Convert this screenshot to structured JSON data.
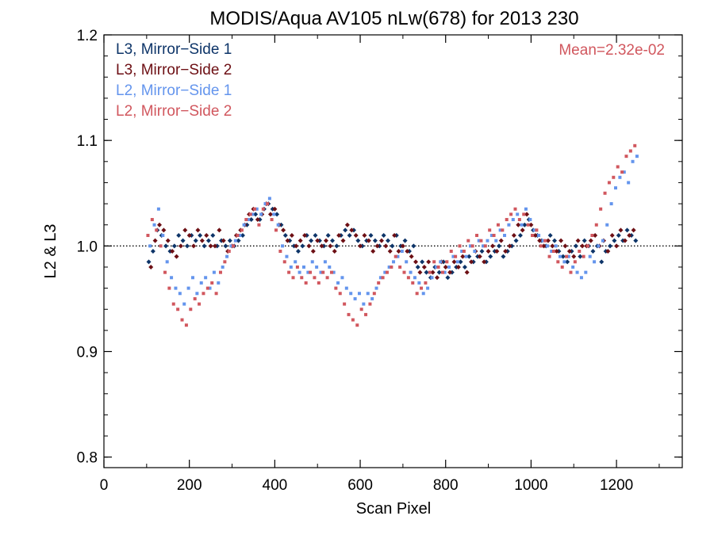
{
  "chart_data": {
    "type": "scatter",
    "title": "MODIS/Aqua AV105 nLw(678) for 2013 230",
    "xlabel": "Scan Pixel",
    "ylabel": "L2 & L3",
    "xlim": [
      0,
      1354
    ],
    "ylim": [
      0.79,
      1.2
    ],
    "xticks": [
      "0",
      "200",
      "400",
      "600",
      "800",
      "1000",
      "1200"
    ],
    "yticks": [
      "0.8",
      "0.9",
      "1.0",
      "1.1",
      "1.2"
    ],
    "reference_line": 1.0,
    "annotation": "Mean=2.32e-02",
    "annotation_color": "#d1575e",
    "legend_position": "top-left",
    "grid": false,
    "series": [
      {
        "name": "L3, Mirror−Side 1",
        "color": "#0d3468",
        "marker": "diamond",
        "x": [
          105,
          115,
          125,
          135,
          145,
          155,
          165,
          175,
          185,
          195,
          205,
          215,
          225,
          235,
          245,
          255,
          265,
          275,
          285,
          295,
          305,
          315,
          325,
          335,
          345,
          355,
          365,
          375,
          385,
          395,
          405,
          415,
          425,
          435,
          445,
          455,
          465,
          475,
          485,
          495,
          505,
          515,
          525,
          535,
          545,
          555,
          565,
          575,
          585,
          595,
          605,
          615,
          625,
          635,
          645,
          655,
          665,
          675,
          685,
          695,
          705,
          715,
          725,
          735,
          745,
          755,
          765,
          775,
          785,
          795,
          805,
          815,
          825,
          835,
          845,
          855,
          865,
          875,
          885,
          895,
          905,
          915,
          925,
          935,
          945,
          955,
          965,
          975,
          985,
          995,
          1005,
          1015,
          1025,
          1035,
          1045,
          1055,
          1065,
          1075,
          1085,
          1095,
          1105,
          1115,
          1125,
          1135,
          1145,
          1155,
          1165,
          1175,
          1185,
          1195,
          1205,
          1215,
          1225,
          1235,
          1245
        ],
        "y": [
          0.985,
          0.995,
          1.015,
          1.01,
          1.0,
          0.995,
          1.0,
          1.01,
          1.005,
          1.0,
          1.01,
          1.005,
          1.01,
          1.0,
          1.005,
          1.01,
          1.0,
          1.005,
          1.0,
          1.005,
          1.0,
          1.005,
          1.01,
          1.02,
          1.025,
          1.03,
          1.025,
          1.035,
          1.04,
          1.035,
          1.03,
          1.02,
          1.01,
          1.005,
          1.0,
          0.995,
          1.0,
          1.01,
          1.005,
          1.01,
          1.005,
          1.0,
          1.01,
          1.005,
          1.0,
          1.01,
          1.015,
          1.01,
          1.015,
          1.005,
          1.0,
          1.005,
          1.01,
          1.005,
          1.0,
          1.01,
          1.005,
          1.0,
          1.01,
          1.0,
          1.005,
          0.995,
          1.0,
          0.98,
          0.985,
          0.975,
          0.97,
          0.98,
          0.975,
          0.985,
          0.97,
          0.975,
          0.98,
          0.985,
          0.98,
          0.99,
          0.985,
          0.99,
          0.995,
          0.985,
          0.99,
          0.995,
          1.0,
          0.99,
          0.995,
          1.0,
          1.005,
          1.01,
          1.02,
          1.025,
          1.015,
          1.01,
          1.005,
          1.0,
          1.01,
          1.005,
          0.995,
          0.99,
          0.985,
          0.995,
          1.0,
          0.99,
          1.005,
          1.0,
          0.995,
          1.0,
          0.985,
          0.995,
          1.0,
          1.005,
          1.01,
          1.005,
          1.015,
          1.01,
          1.005
        ]
      },
      {
        "name": "L3, Mirror−Side 2",
        "color": "#6d0f14",
        "marker": "diamond",
        "x": [
          110,
          120,
          130,
          140,
          150,
          160,
          170,
          180,
          190,
          200,
          210,
          220,
          230,
          240,
          250,
          260,
          270,
          280,
          290,
          300,
          310,
          320,
          330,
          340,
          350,
          360,
          370,
          380,
          390,
          400,
          410,
          420,
          430,
          440,
          450,
          460,
          470,
          480,
          490,
          500,
          510,
          520,
          530,
          540,
          550,
          560,
          570,
          580,
          590,
          600,
          610,
          620,
          630,
          640,
          650,
          660,
          670,
          680,
          690,
          700,
          710,
          720,
          730,
          740,
          750,
          760,
          770,
          780,
          790,
          800,
          810,
          820,
          830,
          840,
          850,
          860,
          870,
          880,
          890,
          900,
          910,
          920,
          930,
          940,
          950,
          960,
          970,
          980,
          990,
          1000,
          1010,
          1020,
          1030,
          1040,
          1050,
          1060,
          1070,
          1080,
          1090,
          1100,
          1110,
          1120,
          1130,
          1140,
          1150,
          1160,
          1170,
          1180,
          1190,
          1200,
          1210,
          1220,
          1230,
          1240
        ],
        "y": [
          0.98,
          1.005,
          1.02,
          1.015,
          1.005,
          0.995,
          0.99,
          1.0,
          1.015,
          1.01,
          1.0,
          1.015,
          1.005,
          1.01,
          1.0,
          1.0,
          1.015,
          1.005,
          0.995,
          1.0,
          1.01,
          1.015,
          1.02,
          1.03,
          1.035,
          1.025,
          1.03,
          1.04,
          1.03,
          1.035,
          1.02,
          1.015,
          1.005,
          1.01,
          1.0,
          1.005,
          1.01,
          1.0,
          0.995,
          1.005,
          1.0,
          1.005,
          1.0,
          0.995,
          1.01,
          1.005,
          1.02,
          1.015,
          1.01,
          1.0,
          1.01,
          1.005,
          0.995,
          1.0,
          1.005,
          1.0,
          0.995,
          1.01,
          0.995,
          1.0,
          0.995,
          0.99,
          0.985,
          0.975,
          0.98,
          0.985,
          0.975,
          0.97,
          0.985,
          0.98,
          0.975,
          0.985,
          0.98,
          0.99,
          0.975,
          0.985,
          0.995,
          0.99,
          0.985,
          0.995,
          1.0,
          0.995,
          1.005,
          0.995,
          1.0,
          1.01,
          1.02,
          1.015,
          1.03,
          1.02,
          1.01,
          1.005,
          1.0,
          1.005,
          1.0,
          0.995,
          1.005,
          1.0,
          0.995,
          0.99,
          1.005,
          1.0,
          1.0,
          1.005,
          1.01,
          1.0,
          1.005,
          0.995,
          1.01,
          1.0,
          1.015,
          1.005,
          1.01,
          1.015
        ]
      },
      {
        "name": "L2, Mirror−Side 1",
        "color": "#6495ed",
        "marker": "square",
        "x": [
          108,
          118,
          128,
          138,
          148,
          158,
          168,
          178,
          188,
          198,
          208,
          218,
          228,
          238,
          248,
          258,
          268,
          278,
          288,
          298,
          308,
          318,
          328,
          338,
          348,
          358,
          368,
          378,
          388,
          398,
          408,
          418,
          428,
          438,
          448,
          458,
          468,
          478,
          488,
          498,
          508,
          518,
          528,
          538,
          548,
          558,
          568,
          578,
          588,
          598,
          608,
          618,
          628,
          638,
          648,
          658,
          668,
          678,
          688,
          698,
          708,
          718,
          728,
          738,
          748,
          758,
          768,
          778,
          788,
          798,
          808,
          818,
          828,
          838,
          848,
          858,
          868,
          878,
          888,
          898,
          908,
          918,
          928,
          938,
          948,
          958,
          968,
          978,
          988,
          998,
          1008,
          1018,
          1028,
          1038,
          1048,
          1058,
          1068,
          1078,
          1088,
          1098,
          1108,
          1118,
          1128,
          1138,
          1148,
          1158,
          1168,
          1178,
          1188,
          1198,
          1208,
          1218,
          1228,
          1238,
          1248
        ],
        "y": [
          1.0,
          1.02,
          1.035,
          1.01,
          0.985,
          0.97,
          0.96,
          0.955,
          0.945,
          0.96,
          0.97,
          0.955,
          0.965,
          0.97,
          0.96,
          0.975,
          0.965,
          0.98,
          0.99,
          1.0,
          1.005,
          1.01,
          1.02,
          1.025,
          1.03,
          1.035,
          1.03,
          1.04,
          1.045,
          1.03,
          1.02,
          1.0,
          0.99,
          0.98,
          0.985,
          0.975,
          0.98,
          0.975,
          0.985,
          0.98,
          0.975,
          0.985,
          0.98,
          0.975,
          0.965,
          0.97,
          0.96,
          0.955,
          0.95,
          0.955,
          0.945,
          0.955,
          0.95,
          0.96,
          0.97,
          0.975,
          0.98,
          0.985,
          0.99,
          0.995,
          0.985,
          0.975,
          0.97,
          0.965,
          0.955,
          0.96,
          0.97,
          0.98,
          0.985,
          0.975,
          0.98,
          0.99,
          0.985,
          0.995,
          0.99,
          1.0,
          0.995,
          1.005,
          1.0,
          1.005,
          1.01,
          1.005,
          1.015,
          1.01,
          1.02,
          1.025,
          1.03,
          1.02,
          1.035,
          1.025,
          1.015,
          1.01,
          1.005,
          1.0,
          0.995,
          1.0,
          0.99,
          0.985,
          0.99,
          0.98,
          0.975,
          0.97,
          0.975,
          0.99,
          0.985,
          1.0,
          1.005,
          1.02,
          1.04,
          1.055,
          1.065,
          1.07,
          1.06,
          1.08,
          1.085
        ]
      },
      {
        "name": "L2, Mirror−Side 2",
        "color": "#d1575e",
        "marker": "square",
        "x": [
          103,
          113,
          123,
          133,
          143,
          153,
          163,
          173,
          183,
          193,
          203,
          213,
          223,
          233,
          243,
          253,
          263,
          273,
          283,
          293,
          303,
          313,
          323,
          333,
          343,
          353,
          363,
          373,
          383,
          393,
          403,
          413,
          423,
          433,
          443,
          453,
          463,
          473,
          483,
          493,
          503,
          513,
          523,
          533,
          543,
          553,
          563,
          573,
          583,
          593,
          603,
          613,
          623,
          633,
          643,
          653,
          663,
          673,
          683,
          693,
          703,
          713,
          723,
          733,
          743,
          753,
          763,
          773,
          783,
          793,
          803,
          813,
          823,
          833,
          843,
          853,
          863,
          873,
          883,
          893,
          903,
          913,
          923,
          933,
          943,
          953,
          963,
          973,
          983,
          993,
          1003,
          1013,
          1023,
          1033,
          1043,
          1053,
          1063,
          1073,
          1083,
          1093,
          1103,
          1113,
          1123,
          1133,
          1143,
          1153,
          1163,
          1173,
          1183,
          1193,
          1203,
          1213,
          1223,
          1233,
          1243
        ],
        "y": [
          1.01,
          1.025,
          1.015,
          1.0,
          0.975,
          0.96,
          0.945,
          0.94,
          0.93,
          0.925,
          0.94,
          0.95,
          0.945,
          0.955,
          0.96,
          0.965,
          0.955,
          0.975,
          0.985,
          0.995,
          1.0,
          1.01,
          1.015,
          1.025,
          1.03,
          1.035,
          1.02,
          1.035,
          1.04,
          1.025,
          1.015,
          0.995,
          0.985,
          0.975,
          0.97,
          0.98,
          0.97,
          0.965,
          0.975,
          0.97,
          0.965,
          0.975,
          0.97,
          0.975,
          0.96,
          0.955,
          0.945,
          0.935,
          0.93,
          0.925,
          0.94,
          0.935,
          0.945,
          0.955,
          0.965,
          0.97,
          0.975,
          0.98,
          0.99,
          0.98,
          0.975,
          0.97,
          0.965,
          0.955,
          0.96,
          0.965,
          0.975,
          0.985,
          0.98,
          0.975,
          0.985,
          0.995,
          0.99,
          1.0,
          0.995,
          1.005,
          1.0,
          1.01,
          1.005,
          1.0,
          1.015,
          1.01,
          1.02,
          1.015,
          1.025,
          1.03,
          1.035,
          1.025,
          1.03,
          1.02,
          1.01,
          1.015,
          1.0,
          1.005,
          0.99,
          0.995,
          0.985,
          0.98,
          0.99,
          0.975,
          0.985,
          0.995,
          0.99,
          1.0,
          1.01,
          1.02,
          1.035,
          1.05,
          1.06,
          1.065,
          1.075,
          1.07,
          1.085,
          1.09,
          1.095
        ]
      }
    ]
  }
}
